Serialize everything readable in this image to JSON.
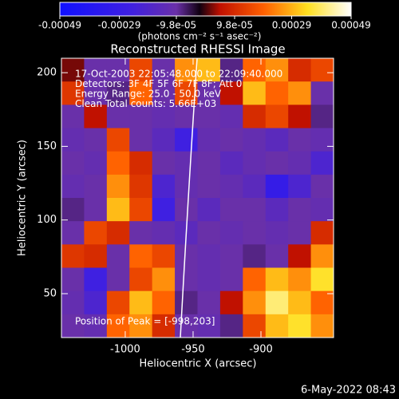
{
  "chart_data": {
    "type": "heatmap",
    "title": "Reconstructed RHESSI Image",
    "x_label": "Heliocentric X (arcsec)",
    "y_label": "Heliocentric Y (arcsec)",
    "xlim": [
      -1047,
      -846.5
    ],
    "ylim": [
      20.2,
      209.8
    ],
    "xticks": [
      -1000,
      -950,
      -900
    ],
    "yticks": [
      50,
      100,
      150,
      200
    ],
    "colorbar": {
      "label": "(photons cm⁻² s⁻¹ asec⁻²)",
      "lim": [
        -0.00049,
        0.00049
      ],
      "ticks": [
        -0.00049,
        -0.00029,
        {
          "value": -9.8e-05,
          "label": "-9.8e-05"
        },
        {
          "value": 9.8e-05,
          "label": "9.8e-05"
        },
        0.00029,
        0.00049
      ]
    },
    "annotations": [
      "17-Oct-2003 22:05:48.000 to 22:09:40.000",
      "Detectors: 3F 4F 5F 6F 7F 8F; Att 0",
      "Energy Range: 25.0 - 50.0 keV",
      "Clean    Total counts: 5.66E+03"
    ],
    "peak_label": "Position of Peak = [-998,203]",
    "timestamp": "6-May-2022 08:43",
    "z": [
      [
        2e-05,
        -0.0001,
        -0.0001,
        0.00015,
        -0.0001,
        0.00025,
        0.0003,
        -8e-05,
        0.0002,
        0.00025,
        0.0001,
        0.00015
      ],
      [
        0.00012,
        -0.0001,
        -8e-05,
        0.0002,
        -0.0001,
        0.00015,
        -0.0001,
        5e-05,
        0.0003,
        0.0002,
        0.00025,
        -0.0001
      ],
      [
        -0.0001,
        5e-05,
        -0.0001,
        -0.0001,
        -0.00012,
        -0.0001,
        -0.0001,
        -0.00012,
        0.0001,
        0.00015,
        5e-05,
        -8e-05
      ],
      [
        -0.00012,
        -0.0001,
        0.00015,
        -0.0001,
        -0.00015,
        -0.00025,
        -0.00012,
        -0.0001,
        -0.00012,
        -0.00015,
        -0.0001,
        -0.00012
      ],
      [
        -0.0001,
        -0.00012,
        0.0002,
        0.0001,
        -0.0001,
        -0.00012,
        -0.0001,
        -0.00015,
        -0.00012,
        -0.0001,
        -0.00012,
        -0.0002
      ],
      [
        -0.00012,
        -0.0001,
        0.00025,
        0.00012,
        -0.0002,
        -0.00012,
        -0.0001,
        -0.00012,
        -0.00015,
        -0.0003,
        -0.0002,
        -0.0001
      ],
      [
        -8e-05,
        -0.0001,
        0.0003,
        0.00015,
        -0.00025,
        -0.0001,
        -0.00015,
        -0.0001,
        -0.0001,
        -0.00015,
        -0.0001,
        -0.00012
      ],
      [
        -0.0001,
        0.00015,
        0.0001,
        -0.0001,
        -0.00012,
        -0.00015,
        -0.0001,
        -0.00012,
        -0.0001,
        -0.00012,
        -0.0001,
        0.0001
      ],
      [
        0.00012,
        0.0001,
        -0.0001,
        0.0002,
        0.00015,
        -0.0001,
        -0.00012,
        -0.0001,
        -8e-05,
        -0.0001,
        5e-05,
        0.00025
      ],
      [
        -0.0001,
        -0.00025,
        -0.0001,
        0.00015,
        0.00025,
        -0.0001,
        -0.00012,
        -0.0001,
        0.0002,
        0.0003,
        0.00025,
        0.00035
      ],
      [
        -0.00012,
        -0.0002,
        0.00015,
        0.0003,
        0.0002,
        -8e-05,
        -0.0001,
        5e-05,
        0.00025,
        0.0004,
        0.0003,
        0.0002
      ],
      [
        -0.0001,
        -0.00012,
        0.0002,
        0.00025,
        0.0001,
        -0.0001,
        -0.00012,
        -8e-05,
        0.00015,
        0.0003,
        0.00035,
        0.00025
      ]
    ]
  }
}
